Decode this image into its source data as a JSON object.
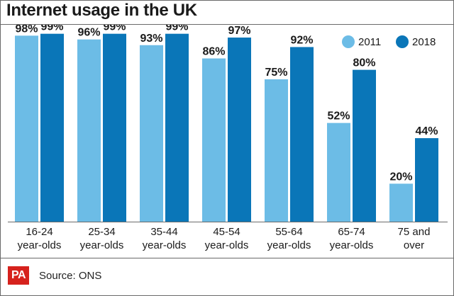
{
  "title": "Internet usage in the UK",
  "source_text": "Source: ONS",
  "logo_text": "PA",
  "colors": {
    "series_2011": "#6cbce6",
    "series_2018": "#0a76b8",
    "text": "#1a1a1a",
    "rule": "#6a6a6a"
  },
  "chart_data": {
    "type": "bar",
    "title": "Internet usage in the UK",
    "xlabel": "",
    "ylabel": "",
    "ylim": [
      0,
      100
    ],
    "grid": false,
    "legend_position": "top-right",
    "categories": [
      [
        "16-24",
        "year-olds"
      ],
      [
        "25-34",
        "year-olds"
      ],
      [
        "35-44",
        "year-olds"
      ],
      [
        "45-54",
        "year-olds"
      ],
      [
        "55-64",
        "year-olds"
      ],
      [
        "65-74",
        "year-olds"
      ],
      [
        "75 and",
        "over"
      ]
    ],
    "series": [
      {
        "name": "2011",
        "values": [
          98,
          96,
          93,
          86,
          75,
          52,
          20
        ]
      },
      {
        "name": "2018",
        "values": [
          99,
          99,
          99,
          97,
          92,
          80,
          44
        ]
      }
    ],
    "value_suffix": "%"
  }
}
